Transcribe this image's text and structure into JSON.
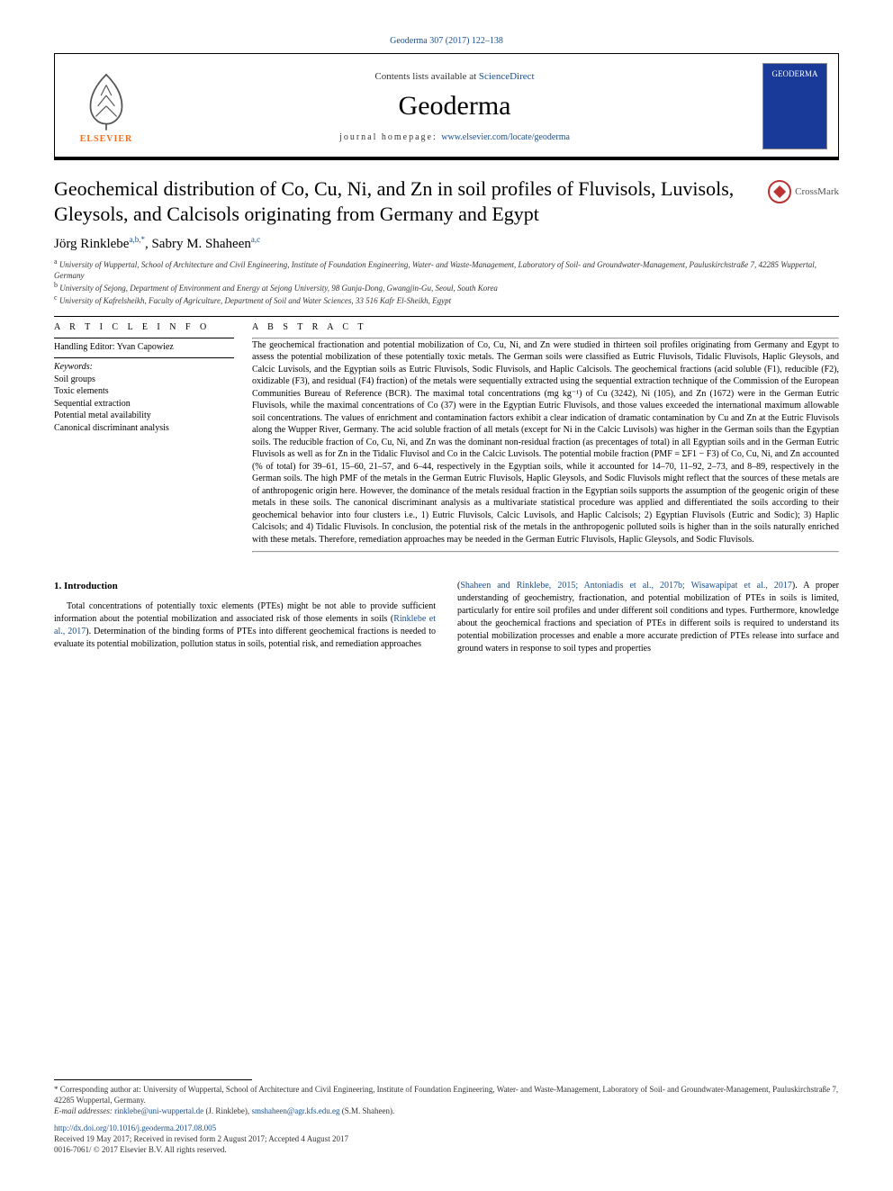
{
  "header": {
    "citation": "Geoderma 307 (2017) 122–138",
    "contents_prefix": "Contents lists available at ",
    "contents_link": "ScienceDirect",
    "journal_name": "Geoderma",
    "homepage_prefix": "journal homepage: ",
    "homepage_url": "www.elsevier.com/locate/geoderma",
    "publisher_label": "ELSEVIER",
    "cover_label": "GEODERMA"
  },
  "article": {
    "title": "Geochemical distribution of Co, Cu, Ni, and Zn in soil profiles of Fluvisols, Luvisols, Gleysols, and Calcisols originating from Germany and Egypt",
    "crossmark_label": "CrossMark",
    "authors_html": "Jörg Rinklebe<sup>a,b,*</sup>, Sabry M. Shaheen<sup>a,c</sup>",
    "affiliations": [
      "a University of Wuppertal, School of Architecture and Civil Engineering, Institute of Foundation Engineering, Water- and Waste-Management, Laboratory of Soil- and Groundwater-Management, Pauluskirchstraße 7, 42285 Wuppertal, Germany",
      "b University of Sejong, Department of Environment and Energy at Sejong University, 98 Gunja-Dong, Gwangjin-Gu, Seoul, South Korea",
      "c University of Kafrelsheikh, Faculty of Agriculture, Department of Soil and Water Sciences, 33 516 Kafr El-Sheikh, Egypt"
    ]
  },
  "info": {
    "head": "A R T I C L E   I N F O",
    "handling_label": "Handling Editor: ",
    "handling_editor": "Yvan Capowiez",
    "keywords_head": "Keywords:",
    "keywords": [
      "Soil groups",
      "Toxic elements",
      "Sequential extraction",
      "Potential metal availability",
      "Canonical discriminant analysis"
    ]
  },
  "abstract": {
    "head": "A B S T R A C T",
    "text": "The geochemical fractionation and potential mobilization of Co, Cu, Ni, and Zn were studied in thirteen soil profiles originating from Germany and Egypt to assess the potential mobilization of these potentially toxic metals. The German soils were classified as Eutric Fluvisols, Tidalic Fluvisols, Haplic Gleysols, and Calcic Luvisols, and the Egyptian soils as Eutric Fluvisols, Sodic Fluvisols, and Haplic Calcisols. The geochemical fractions (acid soluble (F1), reducible (F2), oxidizable (F3), and residual (F4) fraction) of the metals were sequentially extracted using the sequential extraction technique of the Commission of the European Communities Bureau of Reference (BCR). The maximal total concentrations (mg kg⁻¹) of Cu (3242), Ni (105), and Zn (1672) were in the German Eutric Fluvisols, while the maximal concentrations of Co (37) were in the Egyptian Eutric Fluvisols, and those values exceeded the international maximum allowable soil concentrations. The values of enrichment and contamination factors exhibit a clear indication of dramatic contamination by Cu and Zn at the Eutric Fluvisols along the Wupper River, Germany. The acid soluble fraction of all metals (except for Ni in the Calcic Luvisols) was higher in the German soils than the Egyptian soils. The reducible fraction of Co, Cu, Ni, and Zn was the dominant non-residual fraction (as precentages of total) in all Egyptian soils and in the German Eutric Fluvisols as well as for Zn in the Tidalic Fluvisol and Co in the Calcic Luvisols. The potential mobile fraction (PMF = ΣF1 − F3) of Co, Cu, Ni, and Zn accounted (% of total) for 39–61, 15–60, 21–57, and 6–44, respectively in the Egyptian soils, while it accounted for 14–70, 11–92, 2–73, and 8–89, respectively in the German soils. The high PMF of the metals in the German Eutric Fluvisols, Haplic Gleysols, and Sodic Fluvisols might reflect that the sources of these metals are of anthropogenic origin here. However, the dominance of the metals residual fraction in the Egyptian soils supports the assumption of the geogenic origin of these metals in these soils. The canonical discriminant analysis as a multivariate statistical procedure was applied and differentiated the soils according to their geochemical behavior into four clusters i.e., 1) Eutric Fluvisols, Calcic Luvisols, and Haplic Calcisols; 2) Egyptian Fluvisols (Eutric and Sodic); 3) Haplic Calcisols; and 4) Tidalic Fluvisols. In conclusion, the potential risk of the metals in the anthropogenic polluted soils is higher than in the soils naturally enriched with these metals. Therefore, remediation approaches may be needed in the German Eutric Fluvisols, Haplic Gleysols, and Sodic Fluvisols."
  },
  "body": {
    "section_number": "1.",
    "section_title": "Introduction",
    "col1": "Total concentrations of potentially toxic elements (PTEs) might be not able to provide sufficient information about the potential mobilization and associated risk of those elements in soils (Rinklebe et al., 2017). Determination of the binding forms of PTEs into different geochemical fractions is needed to evaluate its potential mobilization, pollution status in soils, potential risk, and remediation approaches",
    "col2": "(Shaheen and Rinklebe, 2015; Antoniadis et al., 2017b; Wisawapipat et al., 2017). A proper understanding of geochemistry, fractionation, and potential mobilization of PTEs in soils is limited, particularly for entire soil profiles and under different soil conditions and types. Furthermore, knowledge about the geochemical fractions and speciation of PTEs in different soils is required to understand its potential mobilization processes and enable a more accurate prediction of PTEs release into surface and ground waters in response to soil types and properties"
  },
  "footer": {
    "corr": "* Corresponding author at: University of Wuppertal, School of Architecture and Civil Engineering, Institute of Foundation Engineering, Water- and Waste-Management, Laboratory of Soil- and Groundwater-Management, Pauluskirchstraße 7, 42285 Wuppertal, Germany.",
    "email_label": "E-mail addresses: ",
    "email1": "rinklebe@uni-wuppertal.de",
    "email1_who": " (J. Rinklebe), ",
    "email2": "smshaheen@agr.kfs.edu.eg",
    "email2_who": " (S.M. Shaheen).",
    "doi": "http://dx.doi.org/10.1016/j.geoderma.2017.08.005",
    "received": "Received 19 May 2017; Received in revised form 2 August 2017; Accepted 4 August 2017",
    "copyright": "0016-7061/ © 2017 Elsevier B.V. All rights reserved."
  },
  "colors": {
    "link": "#1a4f8f",
    "elsevier_orange": "#f36f21",
    "cover_bg": "#1a3a9a"
  }
}
